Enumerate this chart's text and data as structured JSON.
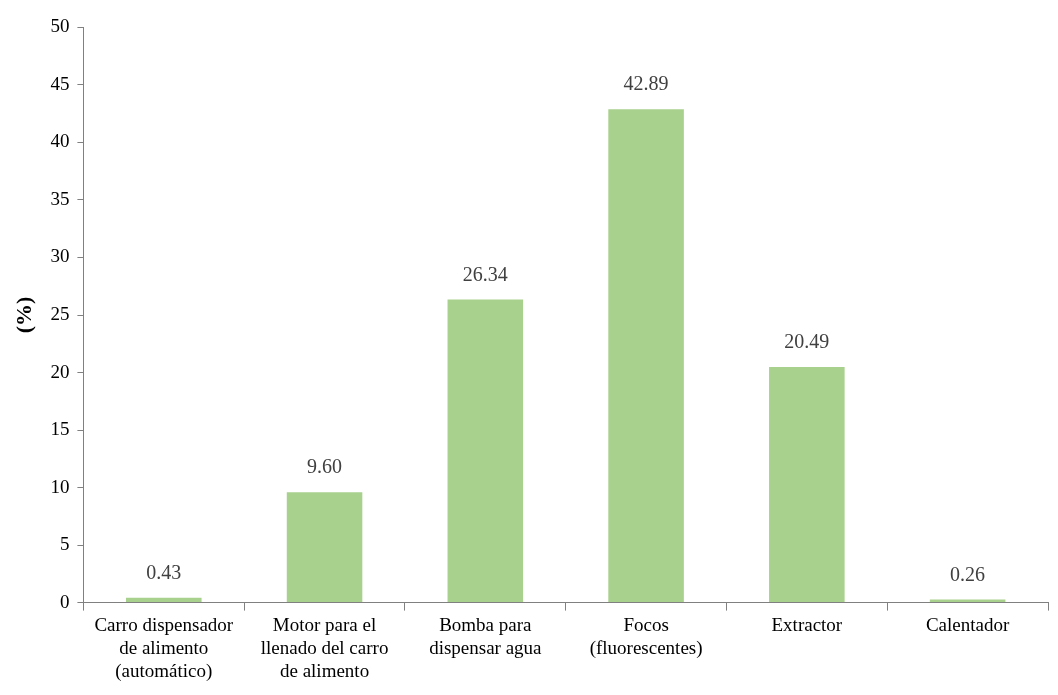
{
  "chart_data": {
    "type": "bar",
    "ylabel": "(%)",
    "categories": [
      "Carro dispensador de alimento (automático)",
      "Motor para el llenado del carro de alimento",
      "Bomba para dispensar agua",
      "Focos (fluorescentes)",
      "Extractor",
      "Calentador"
    ],
    "values": [
      0.43,
      9.6,
      26.34,
      42.89,
      20.49,
      0.26
    ],
    "value_labels": [
      "0.43",
      "9.60",
      "26.34",
      "42.89",
      "20.49",
      "0.26"
    ],
    "color": "#a9d18e",
    "ylim": [
      0,
      50
    ],
    "yticks": [
      0,
      5,
      10,
      15,
      20,
      25,
      30,
      35,
      40,
      45,
      50
    ],
    "grid": false,
    "legend": false
  }
}
